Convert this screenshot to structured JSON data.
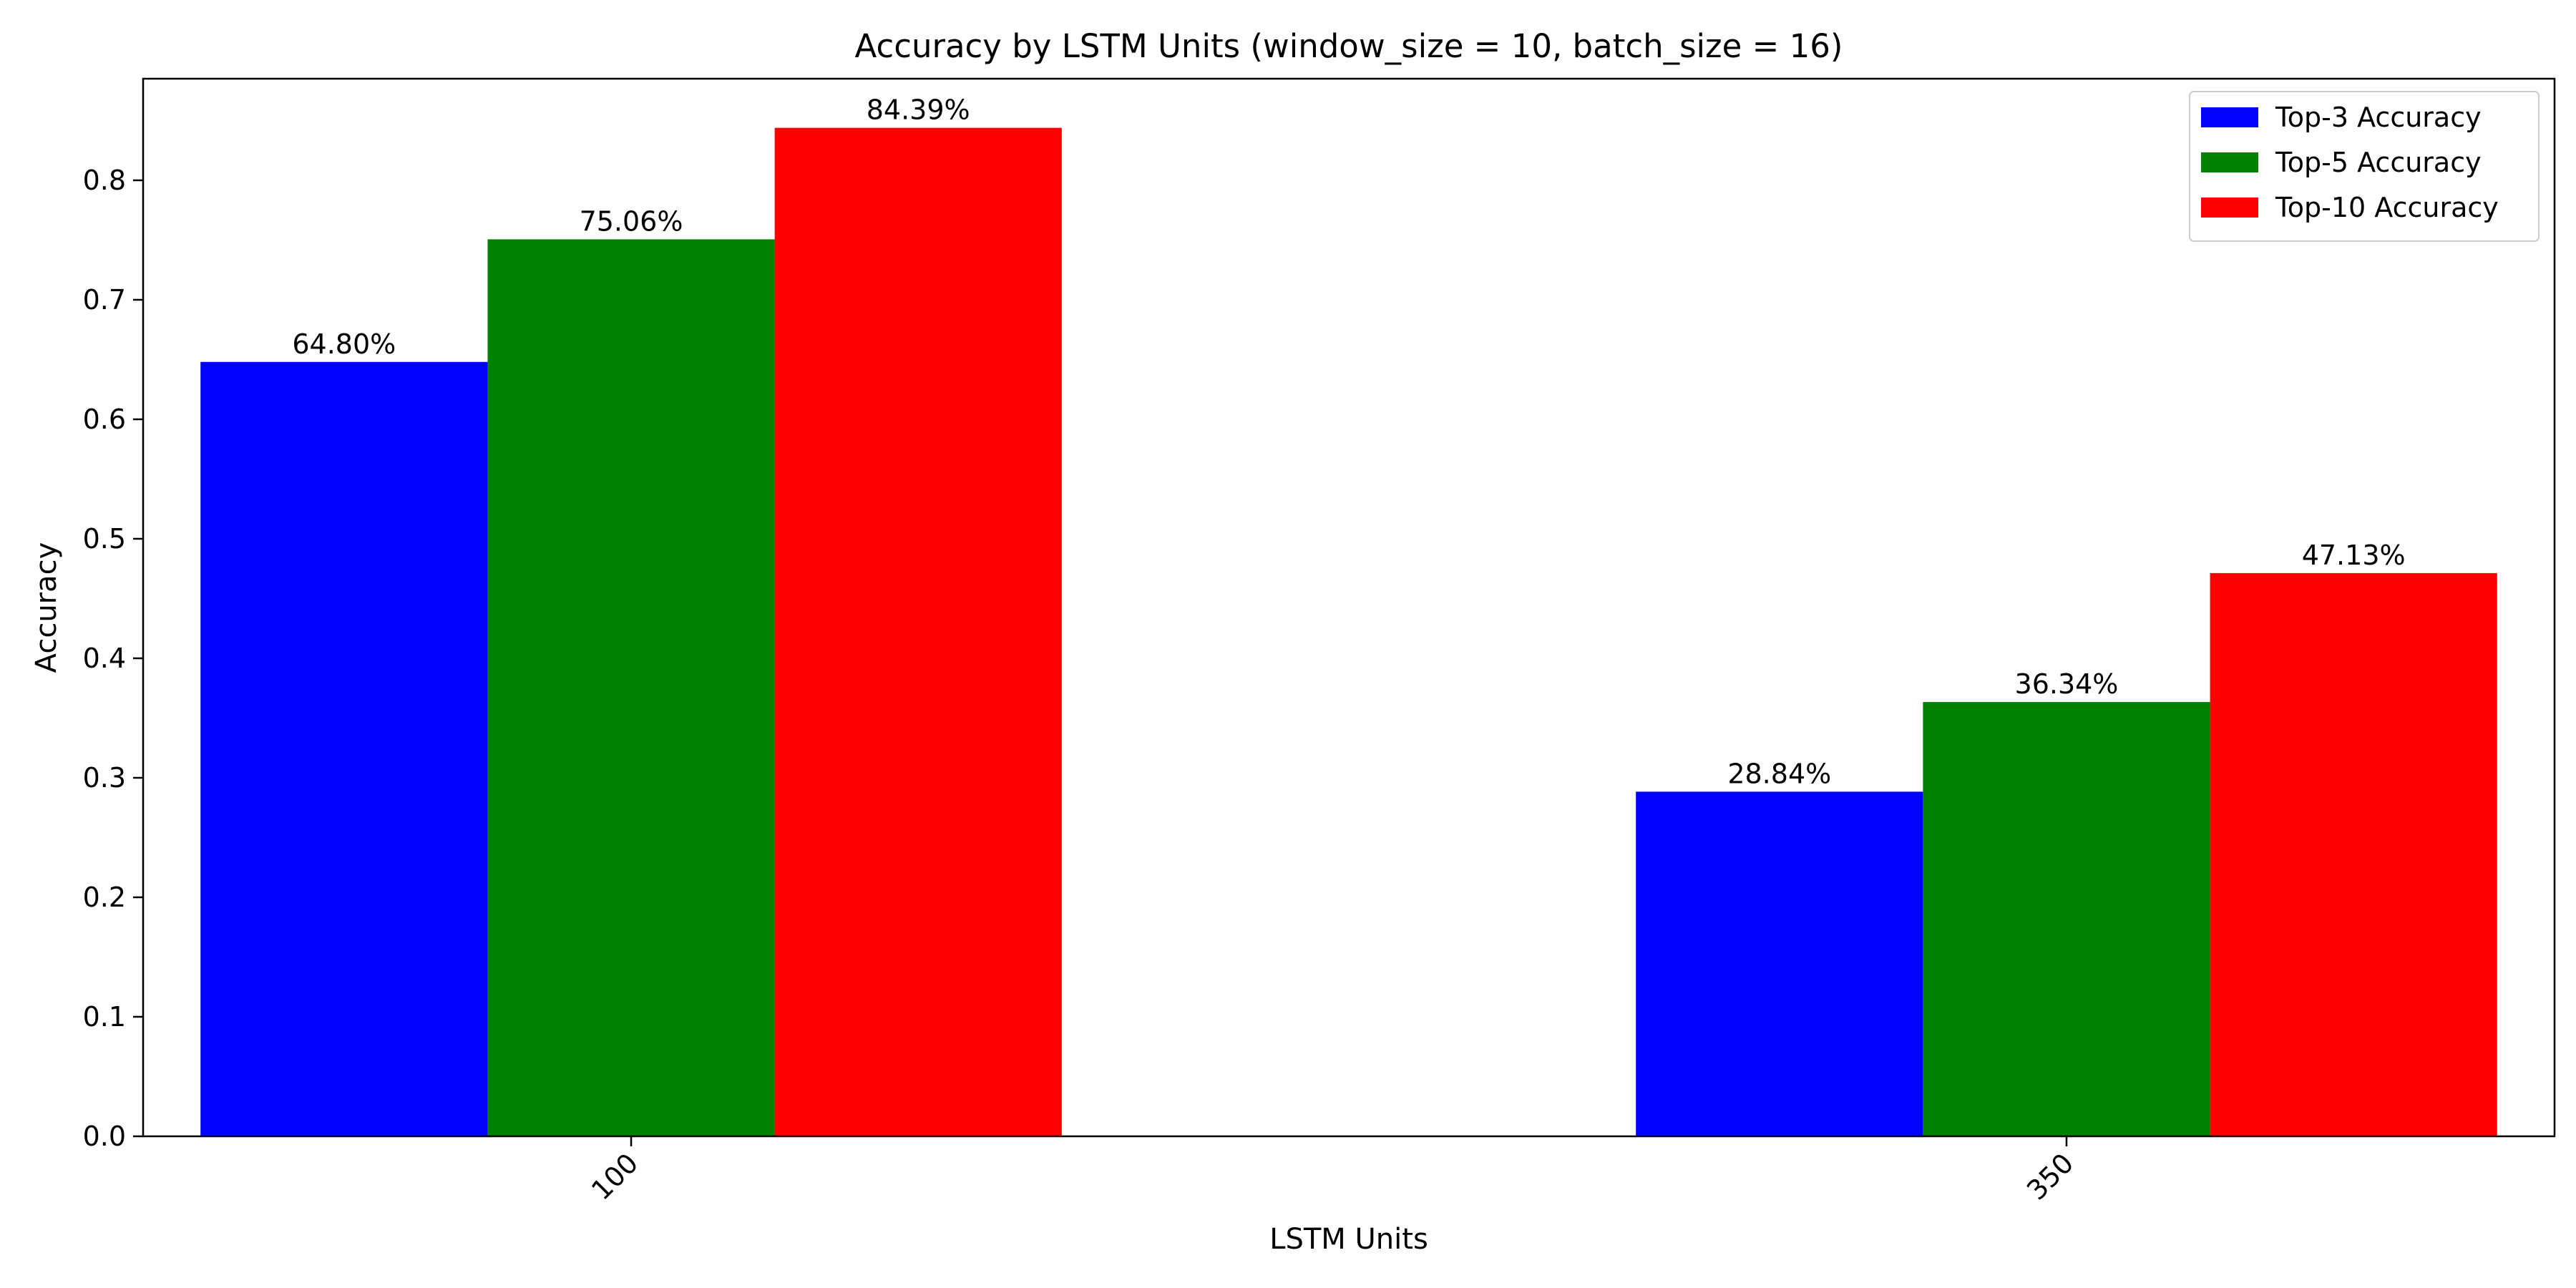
{
  "chart_data": {
    "type": "bar",
    "title": "Accuracy by LSTM Units (window_size = 10, batch_size = 16)",
    "xlabel": "LSTM Units",
    "ylabel": "Accuracy",
    "categories": [
      "100",
      "350"
    ],
    "ylim": [
      0,
      0.885
    ],
    "yticks": [
      0.0,
      0.1,
      0.2,
      0.3,
      0.4,
      0.5,
      0.6,
      0.7,
      0.8
    ],
    "ytick_labels": [
      "0.0",
      "0.1",
      "0.2",
      "0.3",
      "0.4",
      "0.5",
      "0.6",
      "0.7",
      "0.8"
    ],
    "xtick_rotation": "45 degrees",
    "grid": false,
    "legend_position": "top-right",
    "series": [
      {
        "name": "Top-3 Accuracy",
        "color": "#0000ff",
        "values": [
          0.648,
          0.2884
        ],
        "labels": [
          "64.80%",
          "28.84%"
        ]
      },
      {
        "name": "Top-5 Accuracy",
        "color": "#008000",
        "values": [
          0.7506,
          0.3634
        ],
        "labels": [
          "75.06%",
          "36.34%"
        ]
      },
      {
        "name": "Top-10 Accuracy",
        "color": "#ff0000",
        "values": [
          0.8439,
          0.4713
        ],
        "labels": [
          "84.39%",
          "47.13%"
        ]
      }
    ]
  }
}
